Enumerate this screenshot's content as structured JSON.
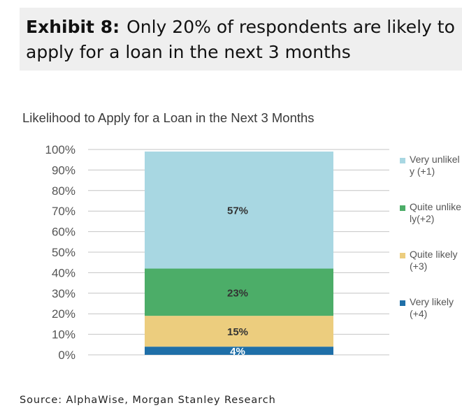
{
  "exhibit": {
    "label": "Exhibit 8:",
    "title": "Only 20% of respondents are likely to apply for a loan in the next 3 months"
  },
  "source": "Source: AlphaWise, Morgan Stanley Research",
  "chart_data": {
    "type": "bar",
    "stacked": true,
    "title": "Likelihood to Apply for a Loan in the Next 3 Months",
    "xlabel": "",
    "ylabel": "",
    "ylim": [
      0,
      100
    ],
    "y_ticks": [
      "0%",
      "10%",
      "20%",
      "30%",
      "40%",
      "50%",
      "60%",
      "70%",
      "80%",
      "90%",
      "100%"
    ],
    "grid": true,
    "legend_position": "right",
    "categories": [
      ""
    ],
    "series": [
      {
        "name": "Very likely (+4)",
        "values": [
          4
        ],
        "label": "4%",
        "color": "#1f6fa8",
        "label_color": "#ffffff"
      },
      {
        "name": "Quite likely (+3)",
        "values": [
          15
        ],
        "label": "15%",
        "color": "#eccd7e",
        "label_color": "#333333"
      },
      {
        "name": "Quite unlikely(+2)",
        "values": [
          23
        ],
        "label": "23%",
        "color": "#4cad68",
        "label_color": "#333333"
      },
      {
        "name": "Very unlikely (+1)",
        "values": [
          57
        ],
        "label": "57%",
        "color": "#a8d7e2",
        "label_color": "#333333"
      }
    ],
    "legend": [
      {
        "label": "Very unlikely (+1)",
        "color": "#a8d7e2"
      },
      {
        "label": "Quite unlikely(+2)",
        "color": "#4cad68"
      },
      {
        "label": "Quite likely (+3)",
        "color": "#eccd7e"
      },
      {
        "label": "Very likely (+4)",
        "color": "#1f6fa8"
      }
    ]
  }
}
